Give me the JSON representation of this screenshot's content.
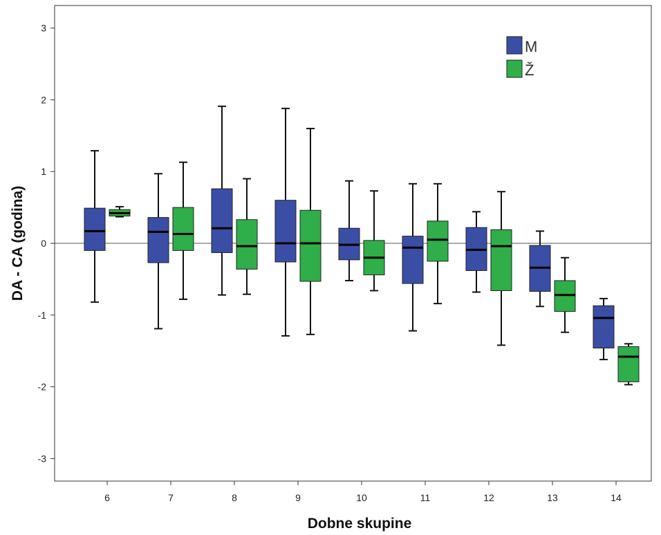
{
  "chart_data": {
    "type": "boxplot",
    "title": "",
    "xlabel": "Dobne skupine",
    "ylabel": "DA - CA (godina)",
    "ylim": [
      -3.4,
      3.4
    ],
    "y_ticks": [
      -3,
      -2,
      -1,
      0,
      1,
      2,
      3
    ],
    "reference_line": 0,
    "grid": false,
    "legend_position": "top-right",
    "categories": [
      "6",
      "7",
      "8",
      "9",
      "10",
      "11",
      "12",
      "13",
      "14"
    ],
    "series": [
      {
        "name": "M",
        "color": "#3b4ea6",
        "boxes": [
          {
            "min": -0.82,
            "q1": -0.1,
            "median": 0.17,
            "q3": 0.49,
            "max": 1.29
          },
          {
            "min": -1.19,
            "q1": -0.27,
            "median": 0.16,
            "q3": 0.36,
            "max": 0.97
          },
          {
            "min": -0.72,
            "q1": -0.13,
            "median": 0.21,
            "q3": 0.76,
            "max": 1.91
          },
          {
            "min": -1.29,
            "q1": -0.26,
            "median": 0.0,
            "q3": 0.6,
            "max": 1.88
          },
          {
            "min": -0.52,
            "q1": -0.23,
            "median": -0.02,
            "q3": 0.21,
            "max": 0.87
          },
          {
            "min": -1.22,
            "q1": -0.56,
            "median": -0.06,
            "q3": 0.1,
            "max": 0.83
          },
          {
            "min": -0.68,
            "q1": -0.38,
            "median": -0.09,
            "q3": 0.22,
            "max": 0.44
          },
          {
            "min": -0.88,
            "q1": -0.67,
            "median": -0.34,
            "q3": -0.03,
            "max": 0.17
          },
          {
            "min": -1.62,
            "q1": -1.46,
            "median": -1.04,
            "q3": -0.87,
            "max": -0.77
          }
        ]
      },
      {
        "name": "Ž",
        "color": "#2fae49",
        "boxes": [
          {
            "min": 0.37,
            "q1": 0.38,
            "median": 0.42,
            "q3": 0.47,
            "max": 0.51
          },
          {
            "min": -0.78,
            "q1": -0.1,
            "median": 0.13,
            "q3": 0.5,
            "max": 1.13
          },
          {
            "min": -0.71,
            "q1": -0.36,
            "median": -0.04,
            "q3": 0.33,
            "max": 0.9
          },
          {
            "min": -1.27,
            "q1": -0.53,
            "median": 0.0,
            "q3": 0.46,
            "max": 1.6
          },
          {
            "min": -0.66,
            "q1": -0.44,
            "median": -0.2,
            "q3": 0.04,
            "max": 0.73
          },
          {
            "min": -0.84,
            "q1": -0.25,
            "median": 0.05,
            "q3": 0.31,
            "max": 0.83
          },
          {
            "min": -1.42,
            "q1": -0.66,
            "median": -0.04,
            "q3": 0.19,
            "max": 0.72
          },
          {
            "min": -1.24,
            "q1": -0.95,
            "median": -0.72,
            "q3": -0.52,
            "max": -0.2
          },
          {
            "min": -1.97,
            "q1": -1.93,
            "median": -1.58,
            "q3": -1.44,
            "max": -1.4
          }
        ]
      }
    ]
  }
}
